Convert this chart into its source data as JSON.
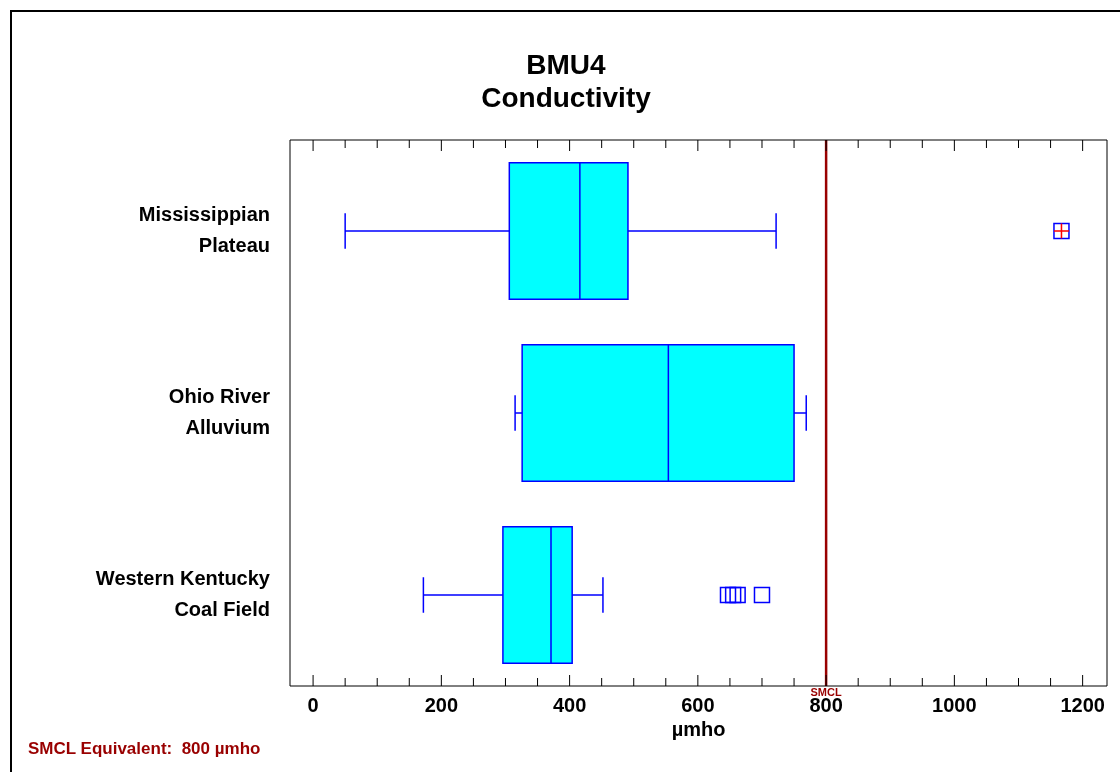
{
  "chart_data": {
    "type": "box",
    "orientation": "horizontal",
    "title": "BMU4",
    "subtitle": "Conductivity",
    "xlabel": "µmho",
    "categories": [
      "Mississippian\nPlateau",
      "Ohio River\nAlluvium",
      "Western Kentucky\nCoal Field"
    ],
    "color": "#00ffff",
    "boxes": [
      {
        "low": 50,
        "q1": 306,
        "median": 416,
        "q3": 491,
        "high": 722,
        "outliers": [
          1167
        ]
      },
      {
        "low": 315,
        "q1": 326,
        "median": 554,
        "q3": 750,
        "high": 769
      },
      {
        "low": 172,
        "q1": 296,
        "median": 371,
        "q3": 404,
        "high": 452,
        "outliers": [
          647,
          655,
          662,
          700
        ]
      }
    ],
    "xlim": [
      -36,
      1238
    ],
    "xticks": [
      0,
      {
        "value": 50,
        "label": null
      },
      {
        "value": 100,
        "label": null
      },
      {
        "value": 150,
        "label": null
      },
      200,
      {
        "value": 250,
        "label": null
      },
      {
        "value": 300,
        "label": null
      },
      {
        "value": 350,
        "label": null
      },
      400,
      {
        "value": 450,
        "label": null
      },
      {
        "value": 500,
        "label": null
      },
      {
        "value": 550,
        "label": null
      },
      600,
      {
        "value": 650,
        "label": null
      },
      {
        "value": 700,
        "label": null
      },
      {
        "value": 750,
        "label": null
      },
      800,
      {
        "value": 850,
        "label": null
      },
      {
        "value": 900,
        "label": null
      },
      {
        "value": 950,
        "label": null
      },
      1000,
      {
        "value": 1050,
        "label": null
      },
      {
        "value": 1100,
        "label": null
      },
      {
        "value": 1150,
        "label": null
      },
      1200
    ],
    "ref_lines": [
      {
        "axis": "x",
        "value": 800,
        "label": "SMCL",
        "color": "#990000"
      }
    ],
    "annotations": [
      "SMCL Equivalent:  800 µmho"
    ],
    "grid": false,
    "legend": false
  }
}
